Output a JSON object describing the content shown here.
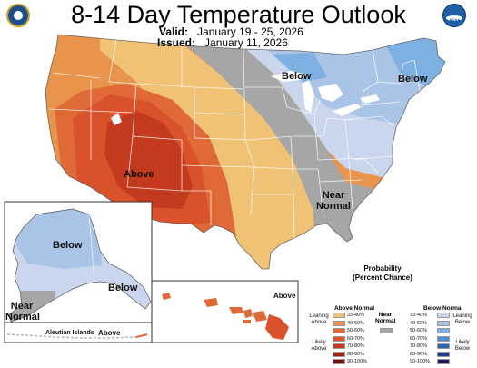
{
  "header": {
    "title": "8-14 Day Temperature Outlook",
    "valid_label": "Valid:",
    "valid_value": "January 19 - 25, 2026",
    "issued_label": "Issued:",
    "issued_value": "January 11, 2026"
  },
  "logos": {
    "left": "doc-seal-icon",
    "right": "noaa-logo-icon"
  },
  "map_labels": {
    "above_main": "Above",
    "below_great_lakes": "Below",
    "below_northeast": "Below",
    "near_normal_line1": "Near",
    "near_normal_line2": "Normal",
    "alaska_below": "Below",
    "alaska_below_se": "Below",
    "alaska_near_line1": "Near",
    "alaska_near_line2": "Normal",
    "aleutian": "Aleutian Islands",
    "aleutian_above": "Above",
    "hawaii_above": "Above"
  },
  "legend": {
    "title_line1": "Probability",
    "title_line2": "(Percent Chance)",
    "above_header": "Above Normal",
    "below_header": "Below Normal",
    "near_header_line1": "Near",
    "near_header_line2": "Normal",
    "leaning_above_1": "Leaning",
    "leaning_above_2": "Above",
    "likely_above_1": "Likely",
    "likely_above_2": "Above",
    "leaning_below_1": "Leaning",
    "leaning_below_2": "Below",
    "likely_below_1": "Likely",
    "likely_below_2": "Below",
    "above": [
      {
        "label": "33-40%",
        "color": "#f0c275"
      },
      {
        "label": "40-50%",
        "color": "#e8944c"
      },
      {
        "label": "50-60%",
        "color": "#e06a37"
      },
      {
        "label": "60-70%",
        "color": "#d9522b"
      },
      {
        "label": "70-80%",
        "color": "#c43a1e"
      },
      {
        "label": "80-90%",
        "color": "#9e2214"
      },
      {
        "label": "90-100%",
        "color": "#7a0f0a"
      }
    ],
    "below": [
      {
        "label": "33-40%",
        "color": "#c9d6ed"
      },
      {
        "label": "40-50%",
        "color": "#a9c4e6"
      },
      {
        "label": "50-60%",
        "color": "#7fb0e2"
      },
      {
        "label": "60-70%",
        "color": "#4a90d6"
      },
      {
        "label": "70-80%",
        "color": "#2e62b4"
      },
      {
        "label": "80-90%",
        "color": "#233a8a"
      },
      {
        "label": "90-100%",
        "color": "#1c1760"
      }
    ],
    "near_color": "#a6a6a6"
  }
}
